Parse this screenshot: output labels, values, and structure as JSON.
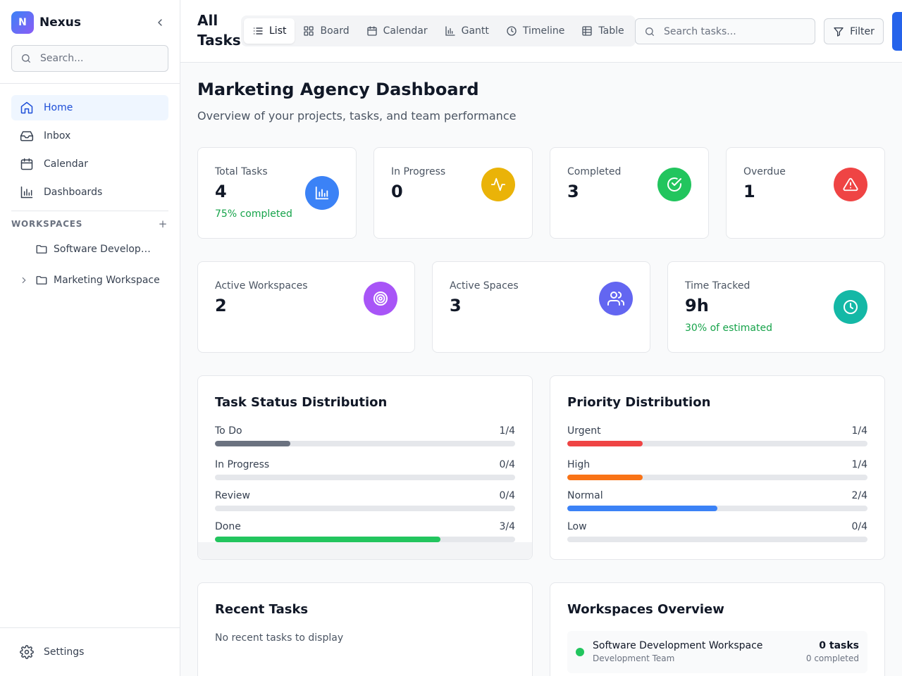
{
  "app": {
    "logo_letter": "N",
    "name": "Nexus"
  },
  "sidebar": {
    "search_placeholder": "Search...",
    "nav": [
      {
        "label": "Home",
        "icon": "home-icon",
        "active": true
      },
      {
        "label": "Inbox",
        "icon": "inbox-icon",
        "active": false
      },
      {
        "label": "Calendar",
        "icon": "calendar-icon",
        "active": false
      },
      {
        "label": "Dashboards",
        "icon": "bar-chart-icon",
        "active": false
      }
    ],
    "workspaces_title": "WORKSPACES",
    "workspaces_add": "+",
    "workspaces": [
      {
        "label": "Software Development Workspace",
        "expandable": false
      },
      {
        "label": "Marketing Workspace",
        "expandable": true
      }
    ],
    "settings_label": "Settings"
  },
  "topbar": {
    "title": "All Tasks",
    "views": [
      {
        "label": "List",
        "icon": "list-icon",
        "active": true
      },
      {
        "label": "Board",
        "icon": "board-icon",
        "active": false
      },
      {
        "label": "Calendar",
        "icon": "calendar-icon",
        "active": false
      },
      {
        "label": "Gantt",
        "icon": "gantt-icon",
        "active": false
      },
      {
        "label": "Timeline",
        "icon": "clock-icon",
        "active": false
      },
      {
        "label": "Table",
        "icon": "table-icon",
        "active": false
      }
    ],
    "search_placeholder": "Search tasks...",
    "filter_label": "Filter"
  },
  "dashboard": {
    "title": "Marketing Agency Dashboard",
    "subtitle": "Overview of your projects, tasks, and team performance",
    "stats_row1": [
      {
        "label": "Total Tasks",
        "value": "4",
        "note": "75% completed",
        "icon": "bar-chart-icon",
        "color": "#3b82f6"
      },
      {
        "label": "In Progress",
        "value": "0",
        "note": "",
        "icon": "activity-icon",
        "color": "#eab308"
      },
      {
        "label": "Completed",
        "value": "3",
        "note": "",
        "icon": "check-circle-icon",
        "color": "#22c55e"
      },
      {
        "label": "Overdue",
        "value": "1",
        "note": "",
        "icon": "alert-triangle-icon",
        "color": "#ef4444"
      }
    ],
    "stats_row2": [
      {
        "label": "Active Workspaces",
        "value": "2",
        "note": "",
        "icon": "target-icon",
        "color": "#a855f7"
      },
      {
        "label": "Active Spaces",
        "value": "3",
        "note": "",
        "icon": "users-icon",
        "color": "#6366f1"
      },
      {
        "label": "Time Tracked",
        "value": "9h",
        "note": "30% of estimated",
        "icon": "clock-icon",
        "color": "#14b8a6"
      }
    ],
    "status_distribution": {
      "title": "Task Status Distribution",
      "rows": [
        {
          "label": "To Do",
          "count": "1/4",
          "fraction": 0.25,
          "color": "#6b7280"
        },
        {
          "label": "In Progress",
          "count": "0/4",
          "fraction": 0,
          "color": "#eab308"
        },
        {
          "label": "Review",
          "count": "0/4",
          "fraction": 0,
          "color": "#a855f7"
        },
        {
          "label": "Done",
          "count": "3/4",
          "fraction": 0.75,
          "color": "#22c55e"
        }
      ]
    },
    "priority_distribution": {
      "title": "Priority Distribution",
      "rows": [
        {
          "label": "Urgent",
          "count": "1/4",
          "fraction": 0.25,
          "color": "#ef4444"
        },
        {
          "label": "High",
          "count": "1/4",
          "fraction": 0.25,
          "color": "#f97316"
        },
        {
          "label": "Normal",
          "count": "2/4",
          "fraction": 0.5,
          "color": "#3b82f6"
        },
        {
          "label": "Low",
          "count": "0/4",
          "fraction": 0,
          "color": "#9ca3af"
        }
      ]
    },
    "recent_tasks": {
      "title": "Recent Tasks",
      "empty_text": "No recent tasks to display"
    },
    "workspaces_overview": {
      "title": "Workspaces Overview",
      "items": [
        {
          "name": "Software Development Workspace",
          "team": "Development Team",
          "tasks": "0 tasks",
          "completed": "0 completed",
          "status_color": "#22c55e"
        }
      ]
    }
  }
}
